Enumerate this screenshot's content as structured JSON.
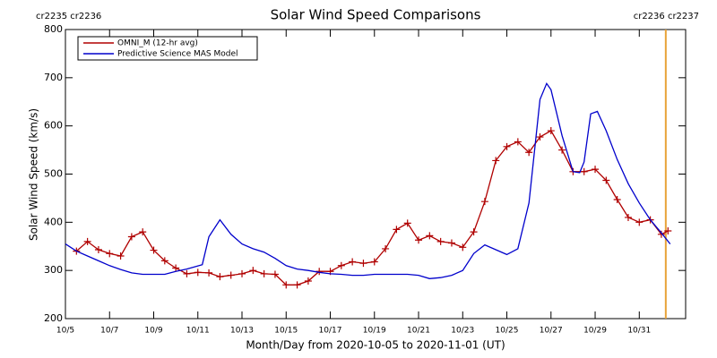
{
  "chart_data": {
    "type": "line",
    "title": "Solar Wind Speed Comparisons",
    "x_label": "Month/Day from 2020-10-05 to 2020-11-01 (UT)",
    "y_label": "Solar Wind Speed (km/s)",
    "corner_left": "cr2235 cr2236",
    "corner_right": "cr2236 cr2237",
    "corner_color": "#e8a33a",
    "vlines": [
      27.2
    ],
    "xlim": [
      0,
      28.1
    ],
    "ylim": [
      200,
      800
    ],
    "xticks": [
      {
        "value": 0,
        "label": "10/5"
      },
      {
        "value": 2,
        "label": "10/7"
      },
      {
        "value": 4,
        "label": "10/9"
      },
      {
        "value": 6,
        "label": "10/11"
      },
      {
        "value": 8,
        "label": "10/13"
      },
      {
        "value": 10,
        "label": "10/15"
      },
      {
        "value": 12,
        "label": "10/17"
      },
      {
        "value": 14,
        "label": "10/19"
      },
      {
        "value": 16,
        "label": "10/21"
      },
      {
        "value": 18,
        "label": "10/23"
      },
      {
        "value": 20,
        "label": "10/25"
      },
      {
        "value": 22,
        "label": "10/27"
      },
      {
        "value": 24,
        "label": "10/29"
      },
      {
        "value": 26,
        "label": "10/31"
      }
    ],
    "yticks": [
      200,
      300,
      400,
      500,
      600,
      700,
      800
    ],
    "legend": "upper left",
    "series": [
      {
        "name": "OMNI_M (12-hr avg)",
        "color": "#b00000",
        "markers": true,
        "x": [
          0.5,
          1,
          1.5,
          2,
          2.5,
          3,
          3.5,
          4,
          4.5,
          5,
          5.5,
          6,
          6.5,
          7,
          7.5,
          8,
          8.5,
          9,
          9.5,
          10,
          10.5,
          11,
          11.5,
          12,
          12.5,
          13,
          13.5,
          14,
          14.5,
          15,
          15.5,
          16,
          16.5,
          17,
          17.5,
          18,
          18.5,
          19,
          19.5,
          20,
          20.5,
          21,
          21.5,
          22,
          22.5,
          23,
          23.5,
          24,
          24.5,
          25,
          25.5,
          26,
          26.5,
          27,
          27.3
        ],
        "values": [
          340,
          360,
          343,
          335,
          330,
          370,
          380,
          342,
          320,
          305,
          293,
          296,
          295,
          287,
          290,
          293,
          300,
          293,
          292,
          270,
          270,
          278,
          298,
          298,
          310,
          318,
          315,
          318,
          345,
          385,
          398,
          363,
          372,
          360,
          357,
          348,
          380,
          443,
          528,
          557,
          567,
          545,
          577,
          590,
          550,
          505,
          505,
          510,
          487,
          447,
          410,
          400,
          405,
          375,
          382
        ]
      },
      {
        "name": "Predictive Science MAS Model",
        "color": "#0000cc",
        "markers": false,
        "x": [
          0,
          0.5,
          1,
          1.5,
          2,
          2.5,
          3,
          3.5,
          4,
          4.5,
          5,
          5.5,
          6.2,
          6.5,
          7,
          7.5,
          8,
          8.5,
          9,
          9.5,
          10,
          10.5,
          11,
          11.5,
          12,
          12.5,
          13,
          13.5,
          14,
          14.5,
          15,
          15.5,
          16,
          16.5,
          17,
          17.5,
          18,
          18.5,
          19,
          19.5,
          20,
          20.5,
          21,
          21.5,
          21.8,
          22,
          22.5,
          23,
          23.3,
          23.5,
          23.8,
          24.1,
          24.5,
          25,
          25.5,
          26,
          26.5,
          27,
          27.4
        ],
        "values": [
          355,
          340,
          330,
          320,
          310,
          302,
          295,
          292,
          292,
          292,
          298,
          303,
          312,
          370,
          405,
          375,
          355,
          345,
          338,
          325,
          310,
          303,
          300,
          296,
          293,
          292,
          290,
          290,
          292,
          292,
          292,
          292,
          290,
          283,
          285,
          290,
          300,
          335,
          353,
          343,
          333,
          345,
          440,
          655,
          688,
          675,
          580,
          505,
          503,
          525,
          625,
          630,
          590,
          530,
          480,
          440,
          405,
          378,
          355
        ]
      }
    ]
  }
}
